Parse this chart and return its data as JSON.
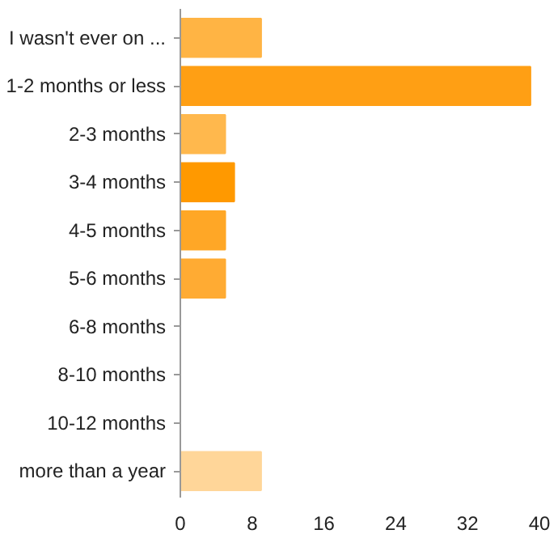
{
  "chart_data": {
    "type": "bar",
    "orientation": "horizontal",
    "categories": [
      "I wasn't ever on ...",
      "1-2 months or less",
      "2-3 months",
      "3-4 months",
      "4-5 months",
      "5-6 months",
      "6-8 months",
      "8-10 months",
      "10-12 months",
      "more than a year"
    ],
    "values": [
      9,
      39,
      5,
      6,
      5,
      5,
      0,
      0,
      0,
      9
    ],
    "colors": [
      "#ffb444",
      "#ff9f14",
      "#ffb84d",
      "#ff9900",
      "#ffa726",
      "#ffab33",
      "#ffa726",
      "#ffa726",
      "#ffa726",
      "#ffd699"
    ],
    "xlim": [
      0,
      40
    ],
    "xticks": [
      0,
      8,
      16,
      24,
      32,
      40
    ],
    "grid": false
  }
}
